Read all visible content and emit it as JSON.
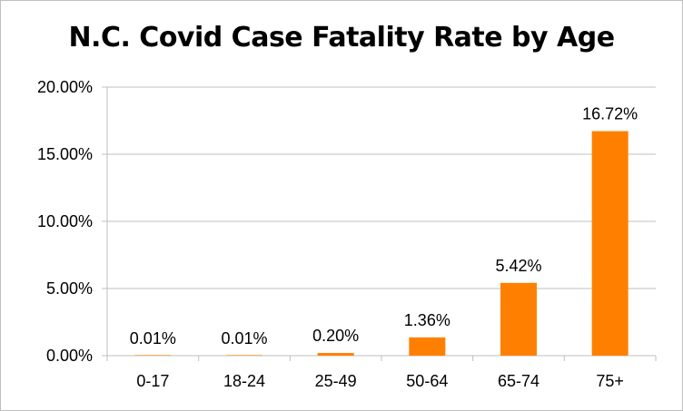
{
  "chart_data": {
    "type": "bar",
    "title": "N.C. Covid Case Fatality Rate by Age",
    "categories": [
      "0-17",
      "18-24",
      "25-49",
      "50-64",
      "65-74",
      "75+"
    ],
    "values": [
      0.01,
      0.01,
      0.2,
      1.36,
      5.42,
      16.72
    ],
    "data_labels": [
      "0.01%",
      "0.01%",
      "0.20%",
      "1.36%",
      "5.42%",
      "16.72%"
    ],
    "y_ticks": [
      0,
      5,
      10,
      15,
      20
    ],
    "y_tick_labels": [
      "0.00%",
      "5.00%",
      "10.00%",
      "15.00%",
      "20.00%"
    ],
    "ylim": [
      0,
      20
    ],
    "xlabel": "",
    "ylabel": "",
    "grid": true,
    "bar_color": "#ff8000",
    "grid_color": "#bfbfbf"
  }
}
